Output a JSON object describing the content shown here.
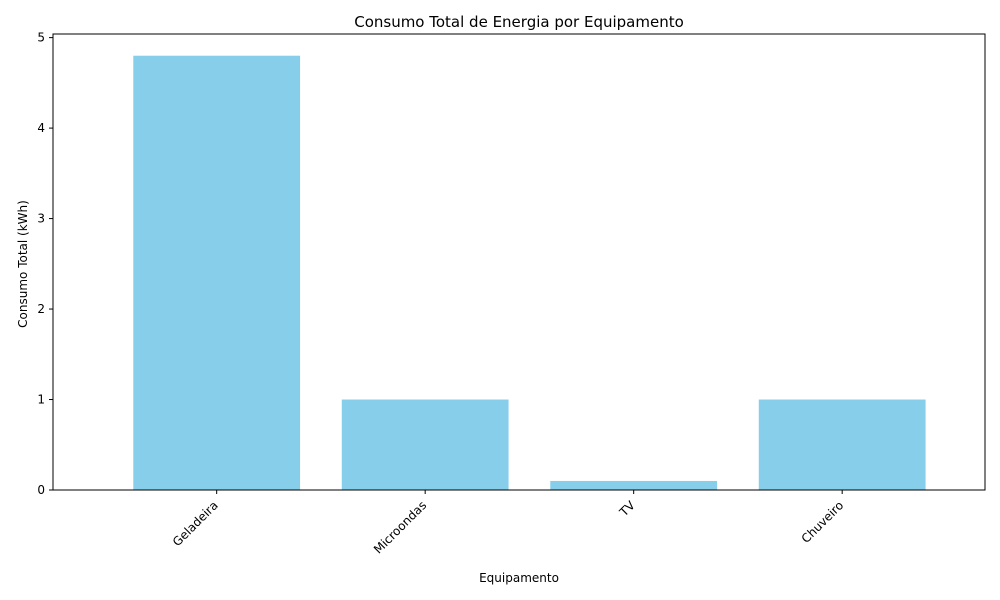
{
  "chart_data": {
    "type": "bar",
    "title": "Consumo Total de Energia por Equipamento",
    "xlabel": "Equipamento",
    "ylabel": "Consumo Total (kWh)",
    "categories": [
      "Geladeira",
      "Microondas",
      "TV",
      "Chuveiro"
    ],
    "values": [
      4.8,
      1.0,
      0.1,
      1.0
    ],
    "ylim": [
      0,
      5.04
    ],
    "yticks": [
      0,
      1,
      2,
      3,
      4,
      5
    ],
    "ytick_labels": [
      "0",
      "1",
      "2",
      "3",
      "4",
      "5"
    ],
    "bar_color": "#87CEEB",
    "grid": false,
    "xtick_rotation": 45
  }
}
